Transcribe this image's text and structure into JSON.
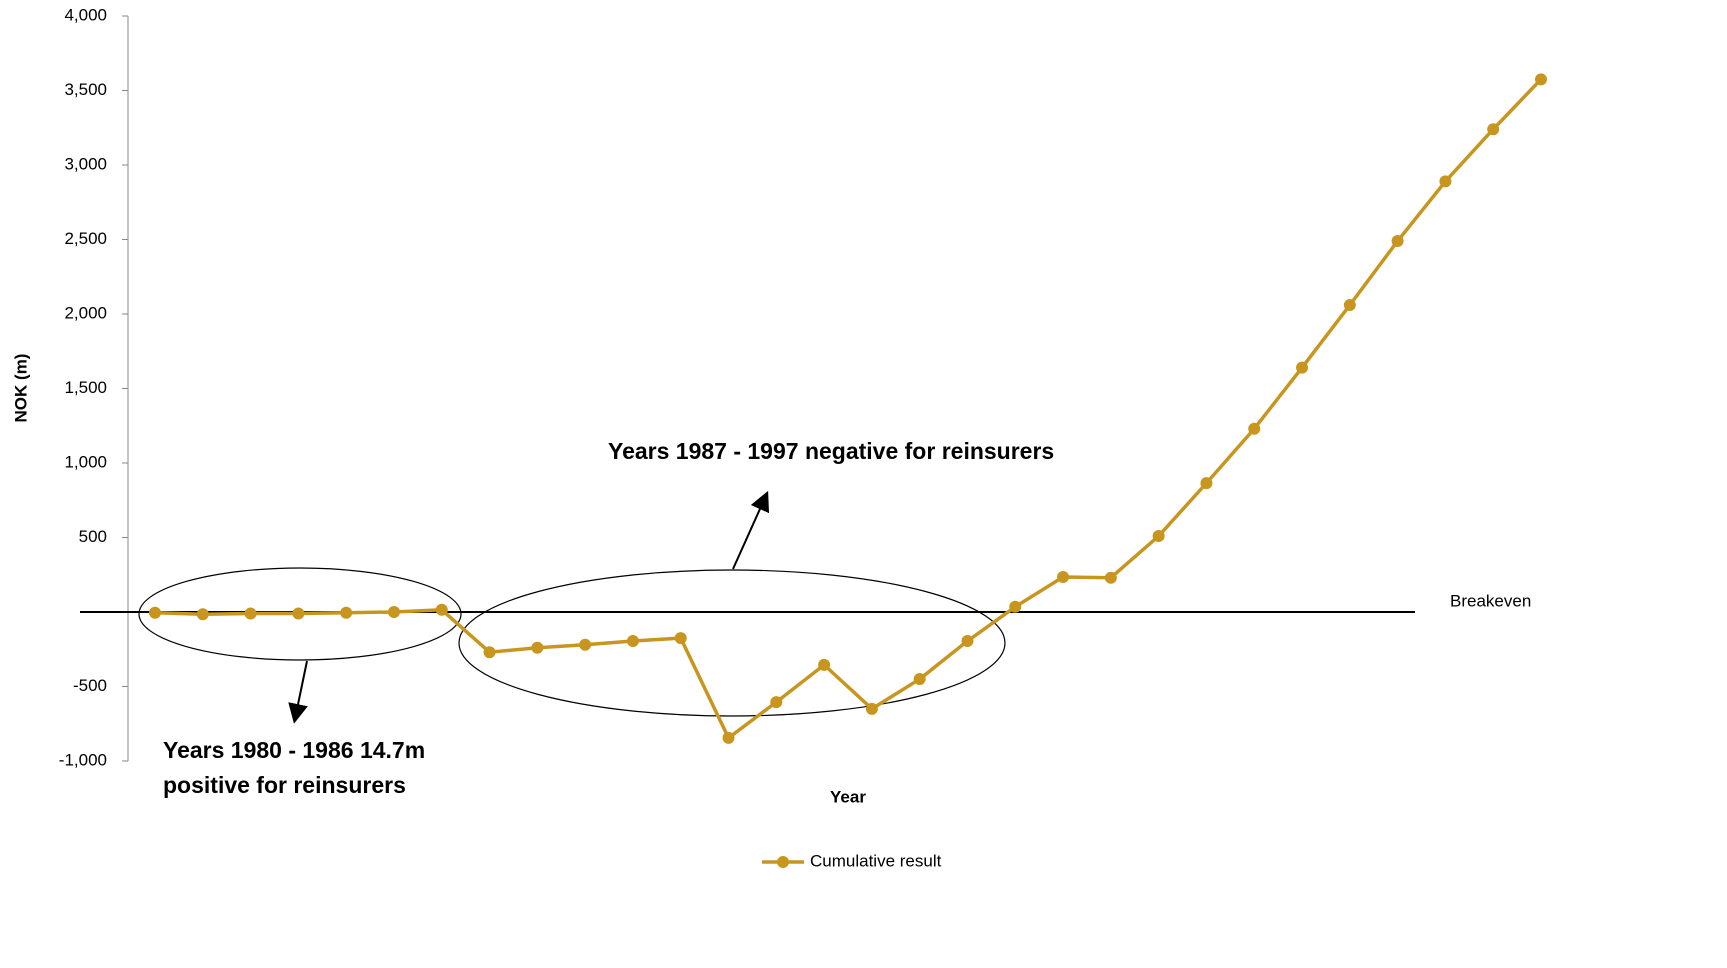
{
  "chart_data": {
    "type": "line",
    "y_label": "NOK (m)",
    "x_label": "Year",
    "ylim": [
      -1000,
      4000
    ],
    "yticks": [
      {
        "value": -1000,
        "label": "-1,000"
      },
      -500,
      {
        "value": 0,
        "label": "-"
      },
      500,
      {
        "value": 1000,
        "label": "1,000"
      },
      {
        "value": 1500,
        "label": "1,500"
      },
      {
        "value": 2000,
        "label": "2,000"
      },
      {
        "value": 2500,
        "label": "2,500"
      },
      {
        "value": 3000,
        "label": "3,000"
      },
      {
        "value": 3500,
        "label": "3,500"
      },
      {
        "value": 4000,
        "label": "4,000"
      }
    ],
    "series": [
      {
        "name": "Cumulative result",
        "color": "#c8961e",
        "values": [
          -5,
          -15,
          -10,
          -10,
          -5,
          0,
          15,
          -270,
          -240,
          -220,
          -195,
          -175,
          -845,
          -605,
          -355,
          -650,
          -450,
          -195,
          35,
          235,
          230,
          510,
          865,
          1230,
          1640,
          2060,
          2490,
          2890,
          3240,
          3575
        ]
      }
    ],
    "reference_line": {
      "value": 0,
      "label": "Breakeven"
    },
    "annotations": [
      [
        "Years 1980 - 1986 14.7m",
        "positive for reinsurers"
      ],
      [
        "Years 1987 - 1997 negative for reinsurers"
      ]
    ],
    "legend": "bottom"
  }
}
